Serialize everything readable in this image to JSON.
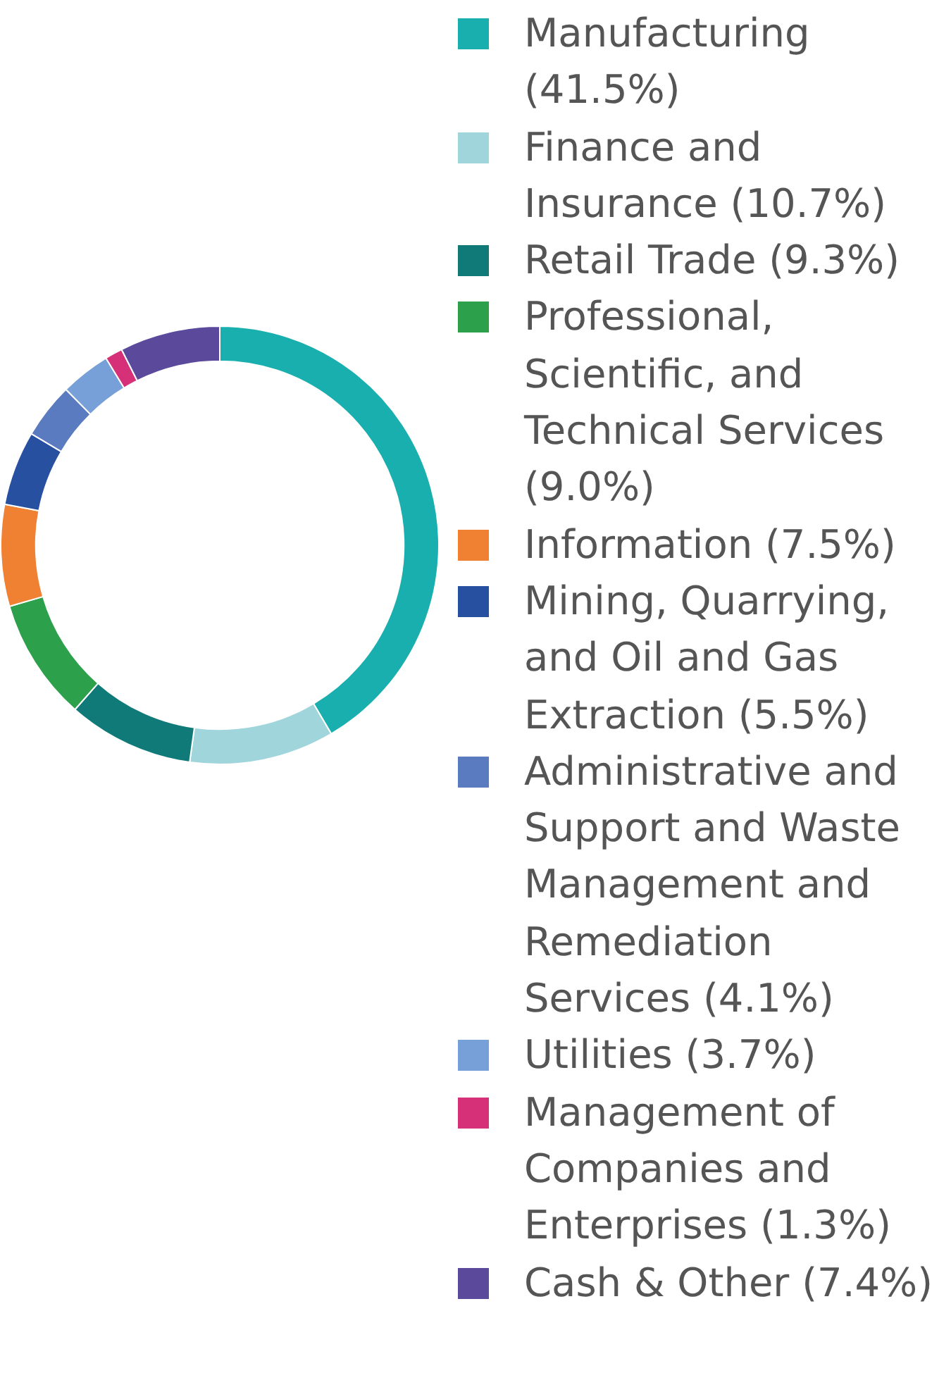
{
  "chart_data": {
    "type": "donut",
    "categories": [
      "Manufacturing",
      "Finance and Insurance",
      "Retail Trade",
      "Professional, Scientific, and Technical Services",
      "Information",
      "Mining, Quarrying, and Oil and Gas Extraction",
      "Administrative and Support and Waste Management and Remediation Services",
      "Utilities",
      "Management of Companies and Enterprises",
      "Cash & Other"
    ],
    "values": [
      41.5,
      10.7,
      9.3,
      9.0,
      7.5,
      5.5,
      4.1,
      3.7,
      1.3,
      7.4
    ],
    "value_labels": [
      "(41.5%)",
      "(10.7%)",
      "(9.3%)",
      "(9.0%)",
      "(7.5%)",
      "(5.5%)",
      "(4.1%)",
      "(3.7%)",
      "(1.3%)",
      "(7.4%)"
    ],
    "colors": [
      "#1aafaf",
      "#a0d5dc",
      "#0f7a78",
      "#2ca04a",
      "#f08032",
      "#2850a0",
      "#5b7bc0",
      "#78a0d8",
      "#d63078",
      "#5b4a9c"
    ],
    "legend": "right"
  }
}
